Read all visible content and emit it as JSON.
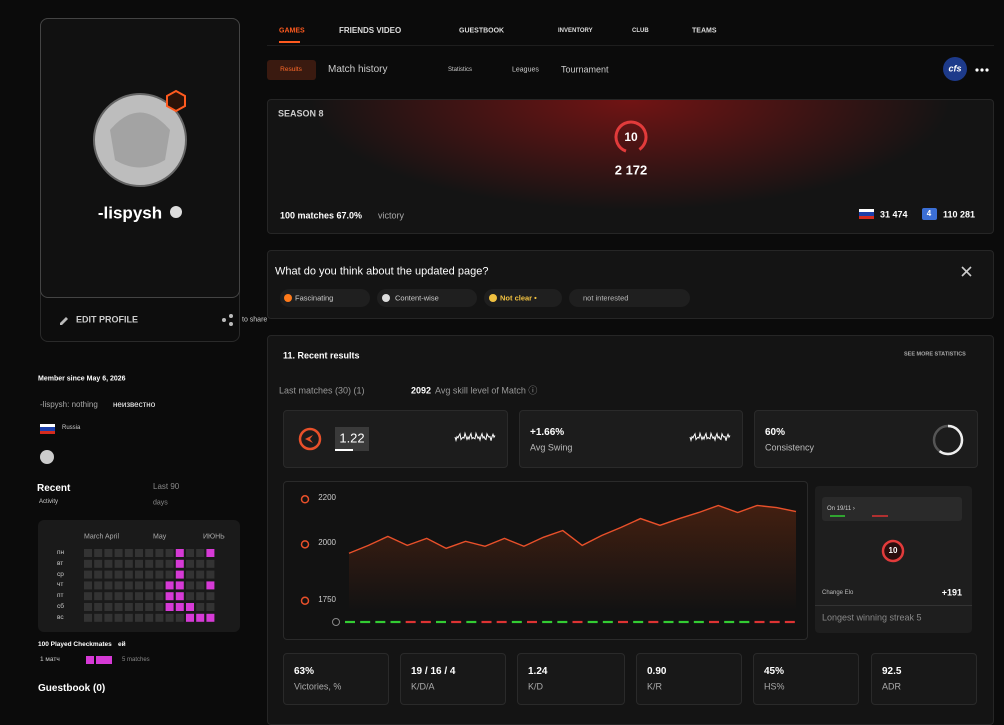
{
  "profile": {
    "name": "-lispysh",
    "edit": "EDIT PROFILE",
    "share": "to share",
    "member_since": "Member since May 6, 2026",
    "status_label": "-lispysh: nothing",
    "status_value": "неизвестно",
    "country": "Russia"
  },
  "activity": {
    "title": "Recent",
    "subtitle": "Activity",
    "range": "Last 90",
    "range_unit": "days",
    "months": [
      "March April",
      "May",
      "ИЮНЬ"
    ],
    "days": [
      "пн",
      "вт",
      "ср",
      "чт",
      "пт",
      "сб",
      "вс"
    ],
    "cells": [
      [
        0,
        0,
        0,
        0,
        0,
        0,
        0,
        0,
        0,
        1,
        0,
        0,
        1
      ],
      [
        0,
        0,
        0,
        0,
        0,
        0,
        0,
        0,
        0,
        1,
        0,
        0,
        0
      ],
      [
        0,
        0,
        0,
        0,
        0,
        0,
        0,
        0,
        0,
        1,
        0,
        0,
        0
      ],
      [
        0,
        0,
        0,
        0,
        0,
        0,
        0,
        0,
        1,
        1,
        0,
        0,
        1
      ],
      [
        0,
        0,
        0,
        0,
        0,
        0,
        0,
        0,
        1,
        1,
        0,
        0,
        0
      ],
      [
        0,
        0,
        0,
        0,
        0,
        0,
        0,
        0,
        1,
        1,
        1,
        0,
        0
      ],
      [
        0,
        0,
        0,
        0,
        0,
        0,
        0,
        0,
        0,
        0,
        1,
        1,
        1
      ]
    ],
    "legend_title": "100 Played Checkmates",
    "legend_suffix": "ей",
    "legend_min": "1 матч",
    "legend_max": "5 matches"
  },
  "guestbook": "Guestbook (0)",
  "nav": {
    "tabs": [
      "GAMES",
      "FRIENDS VIDEO",
      "GUESTBOOK",
      "INVENTORY",
      "CLUB",
      "TEAMS"
    ],
    "subtabs": [
      "Results",
      "Match history",
      "Statistics",
      "Leagues",
      "Tournament"
    ],
    "badge": "cfs"
  },
  "season": {
    "title": "SEASON 8",
    "level": "10",
    "elo": "2 172",
    "matches": "100 matches 67.0%",
    "result": "victory",
    "count_ru": "31 474",
    "secondary_badge": "4",
    "count_world": "110 281"
  },
  "feedback": {
    "question": "What do you think about the updated page?",
    "options": [
      "Fascinating",
      "Content-wise",
      "Not clear •",
      "not interested"
    ]
  },
  "recent": {
    "title": "11. Recent results",
    "more": "SEE MORE STATISTICS",
    "last_matches": "Last matches (30) (1)",
    "avg_skill": "2092",
    "avg_skill_label": "Avg skill level of Match ⓘ",
    "cards": [
      {
        "value": "1.22"
      },
      {
        "value": "+1.66%",
        "label": "Avg Swing"
      },
      {
        "value": "60%",
        "label": "Consistency"
      }
    ],
    "chart": {
      "type": "line",
      "values": [
        1956,
        1991,
        2031,
        1991,
        2022,
        1978,
        2009,
        1987,
        2022,
        1987,
        2027,
        2057,
        1991,
        2035,
        2071,
        2110,
        2080,
        2110,
        2137,
        2168,
        2137,
        2168,
        2159,
        2141
      ],
      "ylim": [
        1700,
        2250
      ],
      "yticks": [
        2200,
        2000,
        1750
      ],
      "results": [
        1,
        1,
        1,
        1,
        0,
        0,
        1,
        0,
        1,
        0,
        0,
        1,
        0,
        1,
        1,
        0,
        1,
        1,
        0,
        1,
        0,
        1,
        1,
        1,
        0,
        1,
        1,
        0,
        0,
        0
      ]
    },
    "side": {
      "date": "On 19/11 ›",
      "level": "10",
      "change_label": "Change Elo",
      "change": "+191",
      "streak": "Longest winning streak 5"
    },
    "stats": [
      {
        "value": "63%",
        "label": "Victories, %"
      },
      {
        "value": "19 / 16 / 4",
        "label": "K/D/A"
      },
      {
        "value": "1.24",
        "label": "K/D"
      },
      {
        "value": "0.90",
        "label": "K/R"
      },
      {
        "value": "45%",
        "label": "HS%"
      },
      {
        "value": "92.5",
        "label": "ADR"
      }
    ]
  }
}
